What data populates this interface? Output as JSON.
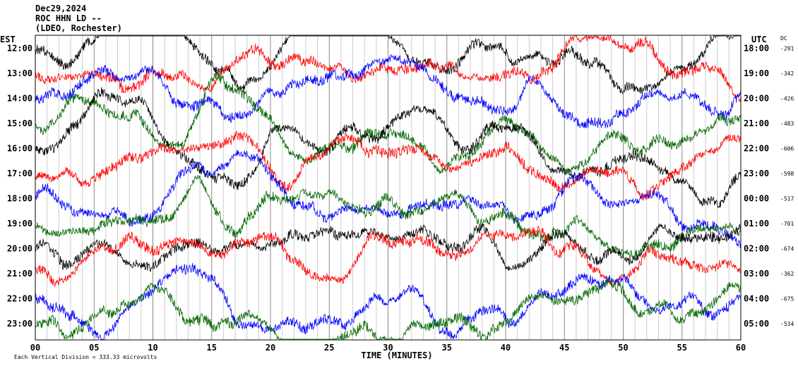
{
  "header": {
    "date": "Dec29,2024",
    "station": "ROC HHN LD --",
    "location": "(LDEO, Rochester)"
  },
  "chart_data": {
    "type": "line",
    "title": "",
    "left_axis_label": "EST",
    "right_axis_label": "UTC",
    "dc_label": "DC",
    "xlabel": "TIME (MINUTES)",
    "xlim": [
      0,
      60
    ],
    "x_ticks": [
      "00",
      "05",
      "10",
      "15",
      "20",
      "25",
      "30",
      "35",
      "40",
      "45",
      "50",
      "55",
      "60"
    ],
    "scale_note": "Each Vertical Division =  333.33 microvolts",
    "grid": "vertical",
    "colors": [
      "#000000",
      "#ff0000",
      "#0000ff",
      "#006600"
    ],
    "traces": [
      {
        "est": "12:00",
        "utc": "18:00",
        "dc": "-291",
        "color": "#000000"
      },
      {
        "est": "13:00",
        "utc": "19:00",
        "dc": "-342",
        "color": "#ff0000"
      },
      {
        "est": "14:00",
        "utc": "20:00",
        "dc": "-426",
        "color": "#0000ff"
      },
      {
        "est": "15:00",
        "utc": "21:00",
        "dc": "-483",
        "color": "#006600"
      },
      {
        "est": "16:00",
        "utc": "22:00",
        "dc": "-606",
        "color": "#000000"
      },
      {
        "est": "17:00",
        "utc": "23:00",
        "dc": "-598",
        "color": "#ff0000"
      },
      {
        "est": "18:00",
        "utc": "00:00",
        "dc": "-517",
        "color": "#0000ff"
      },
      {
        "est": "19:00",
        "utc": "01:00",
        "dc": "-701",
        "color": "#006600"
      },
      {
        "est": "20:00",
        "utc": "02:00",
        "dc": "-674",
        "color": "#000000"
      },
      {
        "est": "21:00",
        "utc": "03:00",
        "dc": "-362",
        "color": "#ff0000"
      },
      {
        "est": "22:00",
        "utc": "04:00",
        "dc": "-675",
        "color": "#0000ff"
      },
      {
        "est": "23:00",
        "utc": "05:00",
        "dc": "-534",
        "color": "#006600"
      }
    ]
  }
}
